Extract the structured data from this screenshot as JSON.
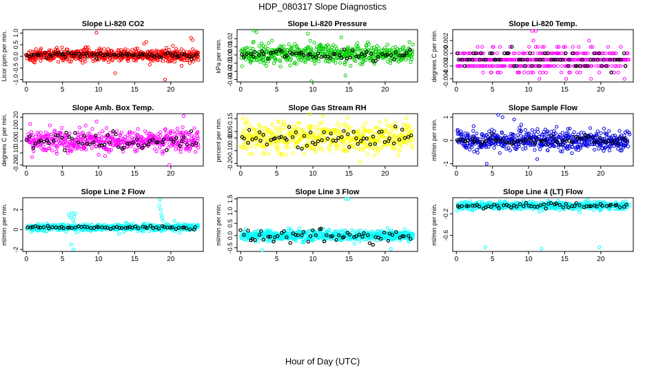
{
  "page": {
    "title": "HDP_080317  Slope Diagnostics",
    "xlabel": "Hour of Day (UTC)"
  },
  "chart_data": [
    {
      "type": "scatter",
      "title": "Slope Li-820 CO2",
      "ylabel": "Licor ppm per min.",
      "xlim": [
        -0.5,
        24.5
      ],
      "ylim": [
        -1.1,
        1.15
      ],
      "xticks": [
        0,
        5,
        10,
        15,
        20
      ],
      "yticks": [
        -1.0,
        -0.5,
        0.0,
        0.5,
        1.0
      ],
      "ytick_labels": [
        "-1.0",
        "-0.5",
        "0.0",
        "0.5",
        "1.0"
      ],
      "series": [
        {
          "name": "all",
          "color": "#ff0000",
          "count": 620,
          "center": 0.05,
          "spread": 0.18,
          "outliers": [
            [
              9.7,
              1.02
            ],
            [
              12.3,
              -0.72
            ],
            [
              16.3,
              0.55
            ],
            [
              16.6,
              0.62
            ],
            [
              17.1,
              -0.35
            ],
            [
              18.8,
              0.25
            ],
            [
              19.2,
              -1.0
            ],
            [
              20.3,
              0.45
            ],
            [
              21.5,
              -0.4
            ],
            [
              22.8,
              0.8
            ],
            [
              23.0,
              0.7
            ]
          ]
        },
        {
          "name": "subset",
          "color": "#000000",
          "count": 70,
          "center": 0.05,
          "spread": 0.08
        }
      ]
    },
    {
      "type": "scatter",
      "title": "Slope Li-820 Pressure",
      "ylabel": "kPa per min.",
      "xlim": [
        -0.5,
        24.5
      ],
      "ylim": [
        -0.033,
        0.031
      ],
      "xticks": [
        0,
        5,
        10,
        15,
        20
      ],
      "yticks": [
        -0.03,
        -0.02,
        -0.01,
        0.0,
        0.01,
        0.02
      ],
      "ytick_labels": [
        "-0.03",
        "-0.02",
        "-0.01",
        "0.00",
        "0.01",
        "0.02"
      ],
      "series": [
        {
          "name": "all",
          "color": "#00cc00",
          "count": 540,
          "center": 0.001,
          "spread": 0.008,
          "outliers": [
            [
              1.8,
              0.03
            ],
            [
              2.2,
              0.028
            ],
            [
              9.3,
              0.026
            ],
            [
              9.8,
              -0.032
            ],
            [
              14.5,
              -0.025
            ]
          ]
        },
        {
          "name": "subset",
          "color": "#000000",
          "count": 60,
          "center": 0.0,
          "spread": 0.005
        }
      ]
    },
    {
      "type": "scatter",
      "title": "Slope Li-820 Temp.",
      "ylabel": "degrees C per min.",
      "xlim": [
        -0.5,
        24.5
      ],
      "ylim": [
        -0.0045,
        0.0037
      ],
      "xticks": [
        0,
        5,
        10,
        15,
        20
      ],
      "yticks": [
        -0.004,
        -0.002,
        0.0,
        0.002
      ],
      "ytick_labels": [
        "-0.004",
        "-0.002",
        "0.000",
        "0.002"
      ],
      "quantize": 0.001,
      "series": [
        {
          "name": "all",
          "color": "#ff00ff",
          "count": 480,
          "center": -0.001,
          "spread": 0.0013,
          "outliers": [
            [
              10.5,
              0.0035
            ],
            [
              11.0,
              0.0035
            ],
            [
              11.5,
              -0.004
            ],
            [
              15.2,
              -0.004
            ]
          ]
        },
        {
          "name": "subset",
          "color": "#000000",
          "count": 70,
          "center": -0.001,
          "spread": 0.001
        }
      ]
    },
    {
      "type": "scatter",
      "title": "Slope Amb. Box Temp.",
      "ylabel": "degrees C per min.",
      "xlim": [
        -0.5,
        24.5
      ],
      "ylim": [
        -0.21,
        0.23
      ],
      "xticks": [
        0,
        5,
        10,
        15,
        20
      ],
      "yticks": [
        -0.2,
        -0.1,
        0.0,
        0.1,
        0.2
      ],
      "ytick_labels": [
        "-0.20",
        "-0.10",
        "0.00",
        "0.10",
        "0.20"
      ],
      "series": [
        {
          "name": "all",
          "color": "#ff00ff",
          "count": 520,
          "center": 0.0,
          "spread": 0.07,
          "outliers": [
            [
              19.8,
              -0.2
            ],
            [
              21.8,
              0.21
            ]
          ]
        },
        {
          "name": "subset",
          "color": "#000000",
          "count": 60,
          "center": 0.0,
          "spread": 0.05
        }
      ]
    },
    {
      "type": "scatter",
      "title": "Slope Gas Stream RH",
      "ylabel": "percent per min.",
      "xlim": [
        -0.5,
        24.5
      ],
      "ylim": [
        -0.22,
        0.19
      ],
      "xticks": [
        0,
        5,
        10,
        15,
        20
      ],
      "yticks": [
        -0.2,
        -0.1,
        0.0,
        0.05,
        0.15
      ],
      "ytick_labels": [
        "-0.20",
        "-0.10",
        "0.00",
        "0.05",
        "0.15"
      ],
      "series": [
        {
          "name": "all",
          "color": "#ffff00",
          "count": 540,
          "center": 0.0,
          "spread": 0.08,
          "outliers": [
            [
              14.8,
              0.16
            ],
            [
              16.5,
              -0.19
            ]
          ]
        },
        {
          "name": "subset",
          "color": "#000000",
          "count": 60,
          "center": 0.0,
          "spread": 0.05
        }
      ]
    },
    {
      "type": "scatter",
      "title": "Slope Sample Flow",
      "ylabel": "ml/min per min.",
      "xlim": [
        -0.5,
        24.5
      ],
      "ylim": [
        -1.1,
        1.15
      ],
      "xticks": [
        0,
        5,
        10,
        15,
        20
      ],
      "yticks": [
        -1,
        0,
        1
      ],
      "ytick_labels": [
        "-1",
        "0",
        "1"
      ],
      "series": [
        {
          "name": "all",
          "color": "#0000dd",
          "count": 560,
          "center": 0.0,
          "spread": 0.3,
          "outliers": [
            [
              4.2,
              -1.0
            ],
            [
              5.8,
              1.1
            ],
            [
              6.4,
              1.0
            ],
            [
              8.0,
              0.9
            ],
            [
              11.2,
              -0.8
            ]
          ]
        },
        {
          "name": "subset",
          "color": "#000000",
          "count": 60,
          "center": 0.0,
          "spread": 0.15
        }
      ]
    },
    {
      "type": "scatter",
      "title": "Slope Line 2 Flow",
      "ylabel": "ml/min per min.",
      "xlim": [
        -0.5,
        24.5
      ],
      "ylim": [
        -2.2,
        3.2
      ],
      "xticks": [
        0,
        5,
        10,
        15,
        20
      ],
      "yticks": [
        -2,
        0,
        2
      ],
      "ytick_labels": [
        "-2",
        "0",
        "2"
      ],
      "series": [
        {
          "name": "all",
          "color": "#00ffff",
          "count": 520,
          "center": 0.2,
          "spread": 0.25,
          "outliers": [
            [
              5.9,
              1.5
            ],
            [
              6.1,
              1.2
            ],
            [
              6.3,
              1.7
            ],
            [
              6.5,
              0.9
            ],
            [
              6.6,
              1.3
            ],
            [
              6.8,
              1.6
            ],
            [
              6.2,
              -1.5
            ],
            [
              6.5,
              -2.0
            ],
            [
              18.5,
              3.0
            ],
            [
              18.6,
              2.0
            ],
            [
              18.7,
              1.5
            ],
            [
              18.8,
              1.2
            ],
            [
              18.9,
              0.9
            ],
            [
              18.4,
              2.4
            ]
          ]
        },
        {
          "name": "subset",
          "color": "#000000",
          "count": 60,
          "center": 0.2,
          "spread": 0.12
        }
      ]
    },
    {
      "type": "scatter",
      "title": "Slope Line 3 Flow",
      "ylabel": "ml/min per min.",
      "xlim": [
        -0.5,
        24.5
      ],
      "ylim": [
        -0.65,
        1.55
      ],
      "xticks": [
        0,
        5,
        10,
        15,
        20
      ],
      "yticks": [
        -0.5,
        0.0,
        0.5,
        1.0,
        1.5
      ],
      "ytick_labels": [
        "-0.5",
        "0.0",
        "0.5",
        "1.0",
        "1.5"
      ],
      "series": [
        {
          "name": "all",
          "color": "#00ffff",
          "count": 600,
          "center": 0.0,
          "spread": 0.15,
          "outliers": [
            [
              14.6,
              1.5
            ],
            [
              14.9,
              1.5
            ],
            [
              3.0,
              -0.6
            ],
            [
              20.8,
              -0.55
            ]
          ]
        },
        {
          "name": "subset",
          "color": "#000000",
          "count": 60,
          "center": 0.0,
          "spread": 0.2
        }
      ]
    },
    {
      "type": "scatter",
      "title": "Slope Line 4 (LT) Flow",
      "ylabel": "ml/min per min.",
      "xlim": [
        -0.5,
        24.5
      ],
      "ylim": [
        -0.9,
        0.1
      ],
      "xticks": [
        0,
        5,
        10,
        15,
        20
      ],
      "yticks": [
        -0.6,
        -0.2
      ],
      "ytick_labels": [
        "-0.6",
        "-0.2"
      ],
      "series": [
        {
          "name": "all",
          "color": "#00ffff",
          "count": 560,
          "center": -0.05,
          "spread": 0.05,
          "outliers": [
            [
              4.0,
              -0.82
            ],
            [
              11.8,
              -0.85
            ],
            [
              19.8,
              -0.82
            ],
            [
              18.2,
              0.06
            ]
          ]
        },
        {
          "name": "subset",
          "color": "#000000",
          "count": 60,
          "center": -0.05,
          "spread": 0.04
        }
      ]
    }
  ]
}
